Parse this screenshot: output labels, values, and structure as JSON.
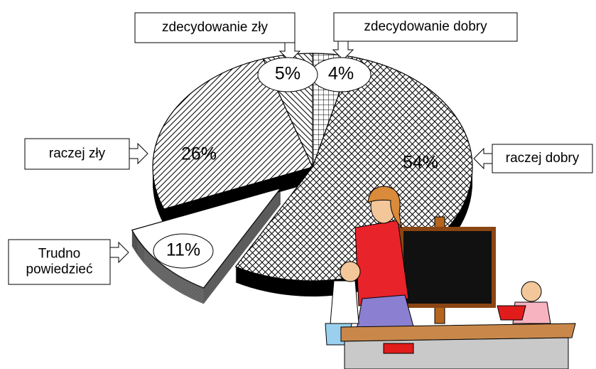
{
  "chart_data": {
    "type": "pie",
    "categories": [
      "zdecydowanie dobry",
      "raczej dobry",
      "Trudno powiedzieć",
      "raczej zły",
      "zdecydowanie zły"
    ],
    "values": [
      4,
      54,
      11,
      26,
      5
    ],
    "value_labels": [
      "4%",
      "54%",
      "11%",
      "26%",
      "5%"
    ],
    "patterns": [
      "grid",
      "crosshatch",
      "white",
      "diagonal",
      "backdiagonal"
    ],
    "explode": [
      false,
      false,
      true,
      false,
      false
    ]
  }
}
